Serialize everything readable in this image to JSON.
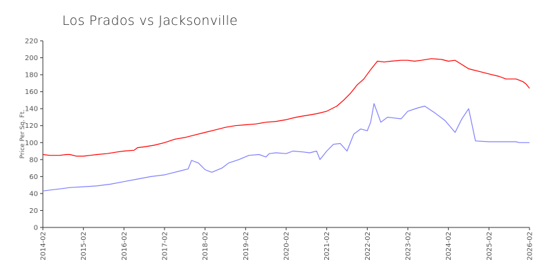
{
  "chart_data": {
    "type": "line",
    "title": "Los Prados vs Jacksonville",
    "xlabel": "",
    "ylabel": "Price Per Sq. Ft.",
    "ylim": [
      0,
      220
    ],
    "yticks": [
      0,
      20,
      40,
      60,
      80,
      100,
      120,
      140,
      160,
      180,
      200,
      220
    ],
    "xticks": [
      "2014-02",
      "2015-02",
      "2016-02",
      "2017-02",
      "2018-02",
      "2019-02",
      "2020-02",
      "2021-02",
      "2022-02",
      "2023-02",
      "2024-02",
      "2025-02",
      "2026-02"
    ],
    "grid": false,
    "legend": "none",
    "series": [
      {
        "color": "#ff0000",
        "points": [
          [
            "2014-02",
            86
          ],
          [
            "2014-04",
            85
          ],
          [
            "2014-07",
            85
          ],
          [
            "2014-09",
            86
          ],
          [
            "2014-10",
            86
          ],
          [
            "2014-12",
            84
          ],
          [
            "2015-02",
            84
          ],
          [
            "2015-04",
            85
          ],
          [
            "2015-06",
            86
          ],
          [
            "2015-09",
            87
          ],
          [
            "2015-12",
            89
          ],
          [
            "2016-02",
            90
          ],
          [
            "2016-05",
            91
          ],
          [
            "2016-06",
            94
          ],
          [
            "2016-08",
            95
          ],
          [
            "2016-11",
            97
          ],
          [
            "2017-02",
            100
          ],
          [
            "2017-05",
            104
          ],
          [
            "2017-08",
            106
          ],
          [
            "2017-11",
            109
          ],
          [
            "2018-02",
            112
          ],
          [
            "2018-05",
            115
          ],
          [
            "2018-08",
            118
          ],
          [
            "2018-11",
            120
          ],
          [
            "2019-02",
            121
          ],
          [
            "2019-05",
            122
          ],
          [
            "2019-08",
            124
          ],
          [
            "2019-11",
            125
          ],
          [
            "2020-02",
            127
          ],
          [
            "2020-05",
            130
          ],
          [
            "2020-08",
            132
          ],
          [
            "2020-11",
            134
          ],
          [
            "2021-02",
            137
          ],
          [
            "2021-05",
            143
          ],
          [
            "2021-07",
            150
          ],
          [
            "2021-09",
            158
          ],
          [
            "2021-11",
            168
          ],
          [
            "2022-01",
            175
          ],
          [
            "2022-03",
            186
          ],
          [
            "2022-05",
            196
          ],
          [
            "2022-07",
            195
          ],
          [
            "2022-09",
            196
          ],
          [
            "2022-12",
            197
          ],
          [
            "2023-02",
            197
          ],
          [
            "2023-04",
            196
          ],
          [
            "2023-06",
            197
          ],
          [
            "2023-09",
            199
          ],
          [
            "2023-12",
            198
          ],
          [
            "2024-02",
            196
          ],
          [
            "2024-04",
            197
          ],
          [
            "2024-06",
            192
          ],
          [
            "2024-08",
            187
          ],
          [
            "2024-11",
            184
          ],
          [
            "2025-02",
            181
          ],
          [
            "2025-05",
            178
          ],
          [
            "2025-07",
            175
          ],
          [
            "2025-10",
            175
          ],
          [
            "2025-12",
            172
          ],
          [
            "2026-01",
            169
          ],
          [
            "2026-02",
            164
          ]
        ]
      },
      {
        "color": "#8080ff",
        "points": [
          [
            "2014-02",
            43
          ],
          [
            "2014-06",
            45
          ],
          [
            "2014-10",
            47
          ],
          [
            "2015-02",
            48
          ],
          [
            "2015-06",
            49
          ],
          [
            "2015-10",
            51
          ],
          [
            "2016-02",
            54
          ],
          [
            "2016-06",
            57
          ],
          [
            "2016-10",
            60
          ],
          [
            "2017-02",
            62
          ],
          [
            "2017-06",
            66
          ],
          [
            "2017-09",
            69
          ],
          [
            "2017-10",
            79
          ],
          [
            "2017-12",
            76
          ],
          [
            "2018-01",
            72
          ],
          [
            "2018-02",
            68
          ],
          [
            "2018-04",
            65
          ],
          [
            "2018-07",
            70
          ],
          [
            "2018-09",
            76
          ],
          [
            "2018-12",
            80
          ],
          [
            "2019-03",
            85
          ],
          [
            "2019-06",
            86
          ],
          [
            "2019-08",
            83
          ],
          [
            "2019-09",
            87
          ],
          [
            "2019-11",
            88
          ],
          [
            "2020-02",
            87
          ],
          [
            "2020-04",
            90
          ],
          [
            "2020-07",
            89
          ],
          [
            "2020-09",
            88
          ],
          [
            "2020-11",
            90
          ],
          [
            "2020-12",
            80
          ],
          [
            "2021-02",
            90
          ],
          [
            "2021-04",
            98
          ],
          [
            "2021-06",
            99
          ],
          [
            "2021-08",
            90
          ],
          [
            "2021-10",
            110
          ],
          [
            "2021-12",
            116
          ],
          [
            "2022-02",
            114
          ],
          [
            "2022-03",
            124
          ],
          [
            "2022-04",
            146
          ],
          [
            "2022-06",
            124
          ],
          [
            "2022-08",
            130
          ],
          [
            "2022-10",
            129
          ],
          [
            "2022-12",
            128
          ],
          [
            "2023-02",
            137
          ],
          [
            "2023-05",
            141
          ],
          [
            "2023-07",
            143
          ],
          [
            "2023-10",
            135
          ],
          [
            "2024-01",
            126
          ],
          [
            "2024-04",
            112
          ],
          [
            "2024-06",
            128
          ],
          [
            "2024-08",
            140
          ],
          [
            "2024-10",
            102
          ],
          [
            "2025-02",
            101
          ],
          [
            "2025-06",
            101
          ],
          [
            "2025-10",
            101
          ],
          [
            "2025-11",
            100
          ],
          [
            "2026-02",
            100
          ]
        ]
      }
    ]
  }
}
